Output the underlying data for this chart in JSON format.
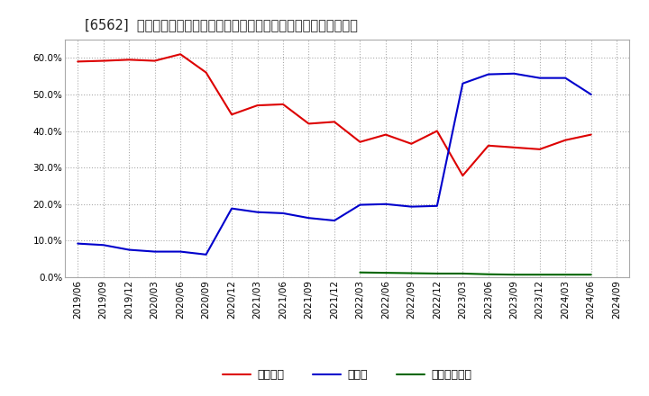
{
  "title": "[6562]  自己資本、のれん、繰延税金資産の総資産に対する比率の推移",
  "x_labels": [
    "2019/06",
    "2019/09",
    "2019/12",
    "2020/03",
    "2020/06",
    "2020/09",
    "2020/12",
    "2021/03",
    "2021/06",
    "2021/09",
    "2021/12",
    "2022/03",
    "2022/06",
    "2022/09",
    "2022/12",
    "2023/03",
    "2023/06",
    "2023/09",
    "2023/12",
    "2024/03",
    "2024/06",
    "2024/09"
  ],
  "jikoshihon": [
    0.59,
    0.592,
    0.595,
    0.592,
    0.61,
    0.56,
    0.445,
    0.47,
    0.473,
    0.42,
    0.425,
    0.37,
    0.39,
    0.365,
    0.4,
    0.278,
    0.36,
    0.355,
    0.35,
    0.375,
    0.39,
    null
  ],
  "noren": [
    0.092,
    0.088,
    0.075,
    0.07,
    0.07,
    0.062,
    0.188,
    0.178,
    0.175,
    0.162,
    0.155,
    0.198,
    0.2,
    0.193,
    0.195,
    0.53,
    0.555,
    0.557,
    0.545,
    0.545,
    0.5,
    null
  ],
  "kurinobezeikinsisan": [
    null,
    null,
    null,
    null,
    null,
    null,
    null,
    null,
    null,
    null,
    null,
    0.013,
    0.012,
    0.011,
    0.01,
    0.01,
    0.008,
    0.007,
    0.007,
    0.007,
    0.007,
    null
  ],
  "line_colors": {
    "jikoshihon": "#dd0000",
    "noren": "#0000cc",
    "kurinobezeikinsisan": "#006600"
  },
  "legend_labels": {
    "jikoshihon": "自己資本",
    "noren": "のれん",
    "kurinobezeikinsisan": "繰延税金資産"
  },
  "ylim": [
    0.0,
    0.65
  ],
  "yticks": [
    0.0,
    0.1,
    0.2,
    0.3,
    0.4,
    0.5,
    0.6
  ],
  "background_color": "#ffffff",
  "plot_bg_color": "#ffffff",
  "grid_color": "#888888",
  "title_fontsize": 10.5,
  "tick_fontsize": 7.5,
  "legend_fontsize": 9
}
